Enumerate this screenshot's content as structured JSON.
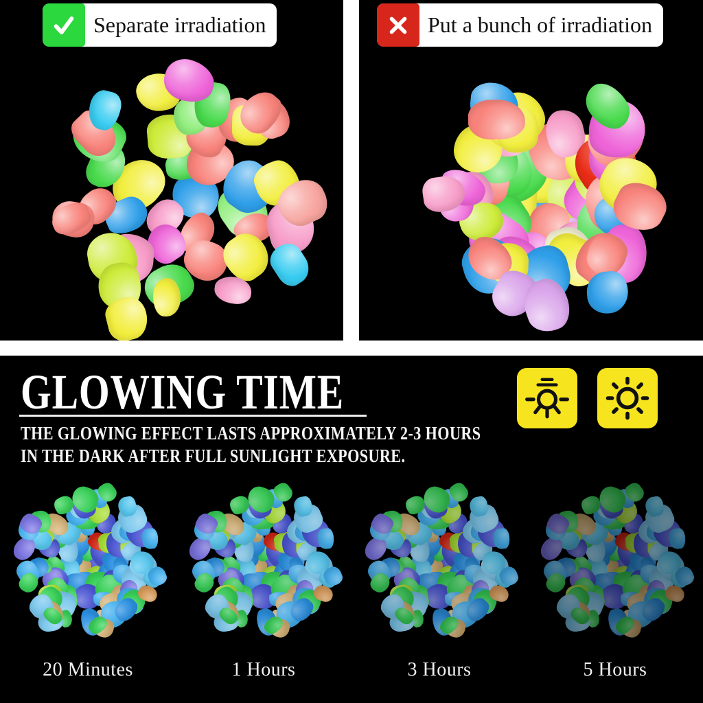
{
  "comparison": {
    "good": {
      "label": "Separate irradiation",
      "icon": "checkmark-icon",
      "badge_color": "#2bd83e"
    },
    "bad": {
      "label": "Put a bunch of irradiation",
      "icon": "x-icon",
      "badge_color": "#d7261b"
    }
  },
  "glowing": {
    "title": "GLOWING TIME",
    "subtitle_line1": "THE GLOWING EFFECT LASTS APPROXIMATELY 2-3 HOURS",
    "subtitle_line2": "IN THE DARK AFTER FULL SUNLIGHT EXPOSURE.",
    "icons": [
      {
        "name": "lamp-icon",
        "bg": "#f6e41e"
      },
      {
        "name": "sun-icon",
        "bg": "#f6e41e"
      }
    ],
    "stages": [
      {
        "label": "20 Minutes",
        "brightness": 1
      },
      {
        "label": "1 Hours",
        "brightness": 0.95
      },
      {
        "label": "3 Hours",
        "brightness": 0.84
      },
      {
        "label": "5 Hours",
        "brightness": 0.6
      }
    ]
  },
  "colors": {
    "background": "#000000",
    "divider": "#ffffff",
    "tag_background": "#ffffff",
    "tag_text": "#111111"
  },
  "piles": {
    "separate": {
      "seed": 11,
      "count": 41,
      "radius": 188,
      "min_size": 52,
      "max_size": 78,
      "r_jitter": 0.22,
      "a_jitter": 0.7,
      "gloss": 0.6,
      "palette": [
        [
          "#f8837b",
          0.16
        ],
        [
          "#f7a39e",
          0.06
        ],
        [
          "#ee64d8",
          0.1
        ],
        [
          "#f79cc8",
          0.08
        ],
        [
          "#f2ee3e",
          0.14
        ],
        [
          "#cdeb39",
          0.1
        ],
        [
          "#49da4d",
          0.12
        ],
        [
          "#90ee7c",
          0.04
        ],
        [
          "#2f9fe9",
          0.12
        ],
        [
          "#38ccf1",
          0.06
        ],
        [
          "#f2f5e4",
          0.02
        ]
      ]
    },
    "bunch": {
      "seed": 5,
      "count": 56,
      "radius": 148,
      "min_size": 56,
      "max_size": 88,
      "r_jitter": 0.3,
      "a_jitter": 0.9,
      "gloss": 0.6,
      "palette": [
        [
          "#f8837b",
          0.13
        ],
        [
          "#ee64d8",
          0.09
        ],
        [
          "#f79cc8",
          0.09
        ],
        [
          "#d9a3ea",
          0.04
        ],
        [
          "#f2ee3e",
          0.13
        ],
        [
          "#cdeb39",
          0.08
        ],
        [
          "#49da4d",
          0.11
        ],
        [
          "#90ee7c",
          0.05
        ],
        [
          "#2f9fe9",
          0.1
        ],
        [
          "#38ccf1",
          0.05
        ],
        [
          "#efedcf",
          0.08
        ],
        [
          "#e92c17",
          0.03
        ],
        [
          "#f6f8ee",
          0.02
        ]
      ]
    },
    "glow": {
      "seed": 29,
      "count": 92,
      "radius": 100,
      "min_size": 25,
      "max_size": 40,
      "r_jitter": 0.18,
      "a_jitter": 0.6,
      "gloss": 0.32,
      "palette": [
        [
          "#45b1ef",
          0.2
        ],
        [
          "#2b90e0",
          0.1
        ],
        [
          "#7cc8ee",
          0.07
        ],
        [
          "#4a55d2",
          0.11
        ],
        [
          "#7b74e2",
          0.06
        ],
        [
          "#38d158",
          0.16
        ],
        [
          "#a6dc33",
          0.1
        ],
        [
          "#58c7ef",
          0.08
        ],
        [
          "#d3af72",
          0.07
        ],
        [
          "#d89a58",
          0.03
        ],
        [
          "#cf2413",
          0.02
        ]
      ]
    }
  }
}
